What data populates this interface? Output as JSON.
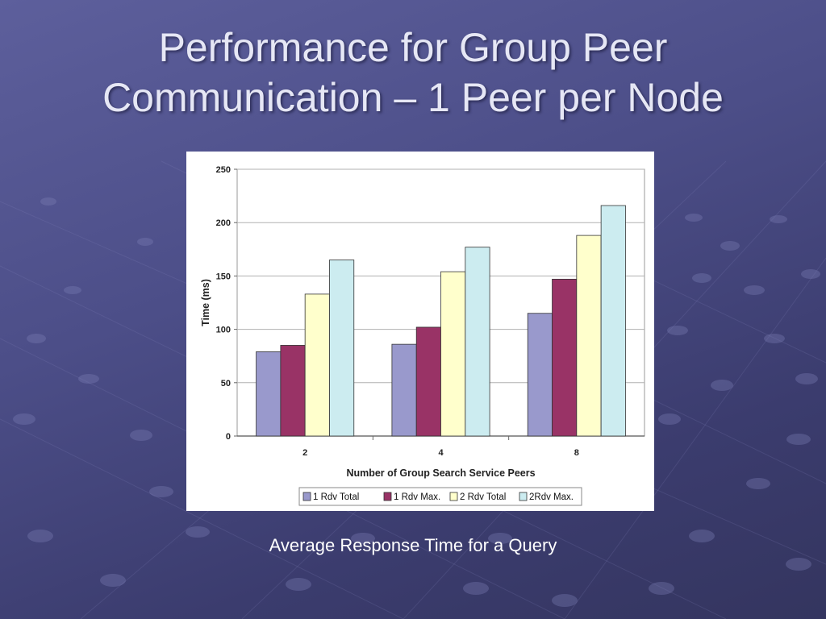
{
  "slide": {
    "title_line1": "Performance for Group Peer",
    "title_line2": "Communication – 1 Peer per Node",
    "caption": "Average Response Time for a Query"
  },
  "colors": {
    "background": "#4c4e88",
    "title": "#e6e7f5"
  },
  "chart_data": {
    "type": "bar",
    "title": "",
    "xlabel": "Number of Group Search Service Peers",
    "ylabel": "Time (ms)",
    "categories": [
      "2",
      "4",
      "8"
    ],
    "ylim": [
      0,
      250
    ],
    "yticks": [
      0,
      50,
      100,
      150,
      200,
      250
    ],
    "grid": true,
    "legend_position": "bottom",
    "series": [
      {
        "name": "1 Rdv Total",
        "values": [
          79,
          86,
          115
        ],
        "color": "#9999cc"
      },
      {
        "name": "1 Rdv Max.",
        "values": [
          85,
          102,
          147
        ],
        "color": "#993366"
      },
      {
        "name": "2 Rdv Total",
        "values": [
          133,
          154,
          188
        ],
        "color": "#ffffcc"
      },
      {
        "name": "2Rdv Max.",
        "values": [
          165,
          177,
          216
        ],
        "color": "#ccecf0"
      }
    ]
  }
}
